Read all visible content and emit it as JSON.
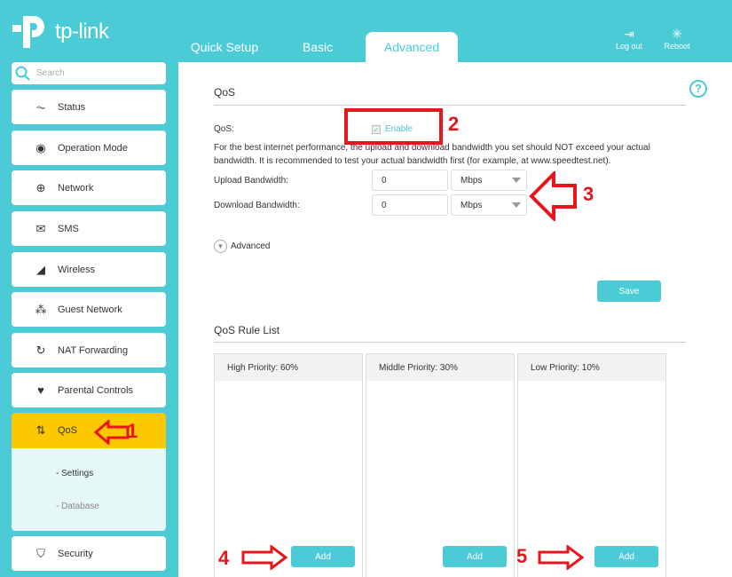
{
  "brand": "tp-link",
  "tabs": [
    {
      "label": "Quick Setup"
    },
    {
      "label": "Basic"
    },
    {
      "label": "Advanced",
      "active": true
    }
  ],
  "top_buttons": {
    "logout": "Log out",
    "reboot": "Reboot"
  },
  "search": {
    "placeholder": "Search"
  },
  "sidebar": {
    "items": [
      {
        "label": "Status",
        "icon": "pulse-icon"
      },
      {
        "label": "Operation Mode",
        "icon": "toggle-icon"
      },
      {
        "label": "Network",
        "icon": "globe-icon"
      },
      {
        "label": "SMS",
        "icon": "envelope-icon"
      },
      {
        "label": "Wireless",
        "icon": "wifi-icon"
      },
      {
        "label": "Guest Network",
        "icon": "guests-icon"
      },
      {
        "label": "NAT Forwarding",
        "icon": "nat-icon"
      },
      {
        "label": "Parental Controls",
        "icon": "heart-icon"
      },
      {
        "label": "QoS",
        "icon": "up-down-arrows-icon",
        "active": true
      },
      {
        "label": "Security",
        "icon": "shield-icon"
      }
    ],
    "submenu": [
      "- Settings",
      "- Database"
    ]
  },
  "qos": {
    "title": "QoS",
    "label": "QoS:",
    "enable": "Enable",
    "enabled": true,
    "note1": "For the best internet performance, the upload and download bandwidth you set should NOT exceed your actual",
    "note2": "bandwidth. It is recommended to test your actual bandwidth first (for example, at www.speedtest.net).",
    "upload_label": "Upload Bandwidth:",
    "upload_value": "0",
    "upload_unit": "Mbps",
    "download_label": "Download Bandwidth:",
    "download_value": "0",
    "download_unit": "Mbps",
    "advanced": "Advanced",
    "save": "Save"
  },
  "rules": {
    "title": "QoS Rule List",
    "columns": [
      {
        "header": "High Priority: 60%",
        "add": "Add"
      },
      {
        "header": "Middle Priority: 30%",
        "add": "Add"
      },
      {
        "header": "Low Priority: 10%",
        "add": "Add"
      }
    ]
  },
  "annotations": [
    "1",
    "2",
    "3",
    "4",
    "5"
  ],
  "colors": {
    "accent": "#4acbd6",
    "active": "#fcc800",
    "annotation": "#e8151d"
  }
}
